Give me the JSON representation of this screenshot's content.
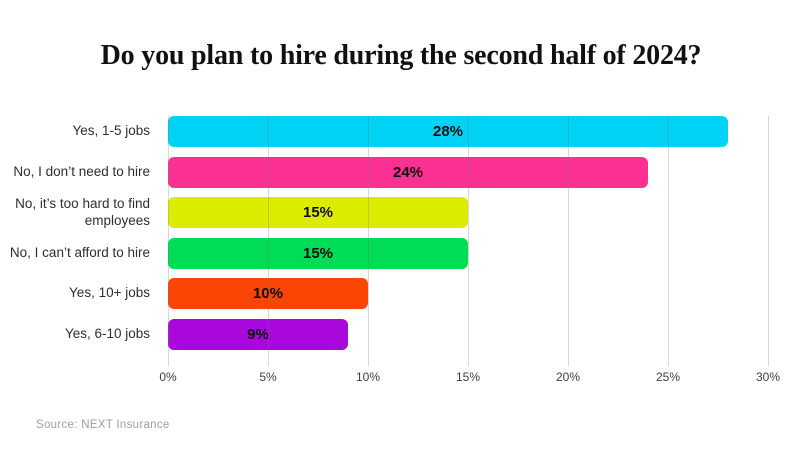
{
  "page": {
    "title": "Do you plan to hire during the second half of 2024?",
    "source": "Source: NEXT Insurance"
  },
  "chart_data": {
    "type": "bar",
    "orientation": "horizontal",
    "title": "Do you plan to hire during the second half of 2024?",
    "categories": [
      "Yes, 1-5 jobs",
      "No, I don’t need to hire",
      "No, it’s too hard to find employees",
      "No, I can’t afford to hire",
      "Yes, 10+ jobs",
      "Yes, 6-10 jobs"
    ],
    "values": [
      28,
      24,
      15,
      15,
      10,
      9
    ],
    "value_labels": [
      "28%",
      "24%",
      "15%",
      "15%",
      "10%",
      "9%"
    ],
    "bar_colors": [
      "#00d2f5",
      "#fb3093",
      "#dcec00",
      "#00dc55",
      "#fa4505",
      "#a808da"
    ],
    "x_ticks": [
      "0%",
      "5%",
      "10%",
      "15%",
      "20%",
      "25%",
      "30%"
    ],
    "x_tick_values": [
      0,
      5,
      10,
      15,
      20,
      25,
      30
    ],
    "xlim": [
      0,
      30
    ],
    "grid": "vertical",
    "legend": "none",
    "value_label_position": "center",
    "source": "Source: NEXT Insurance"
  }
}
